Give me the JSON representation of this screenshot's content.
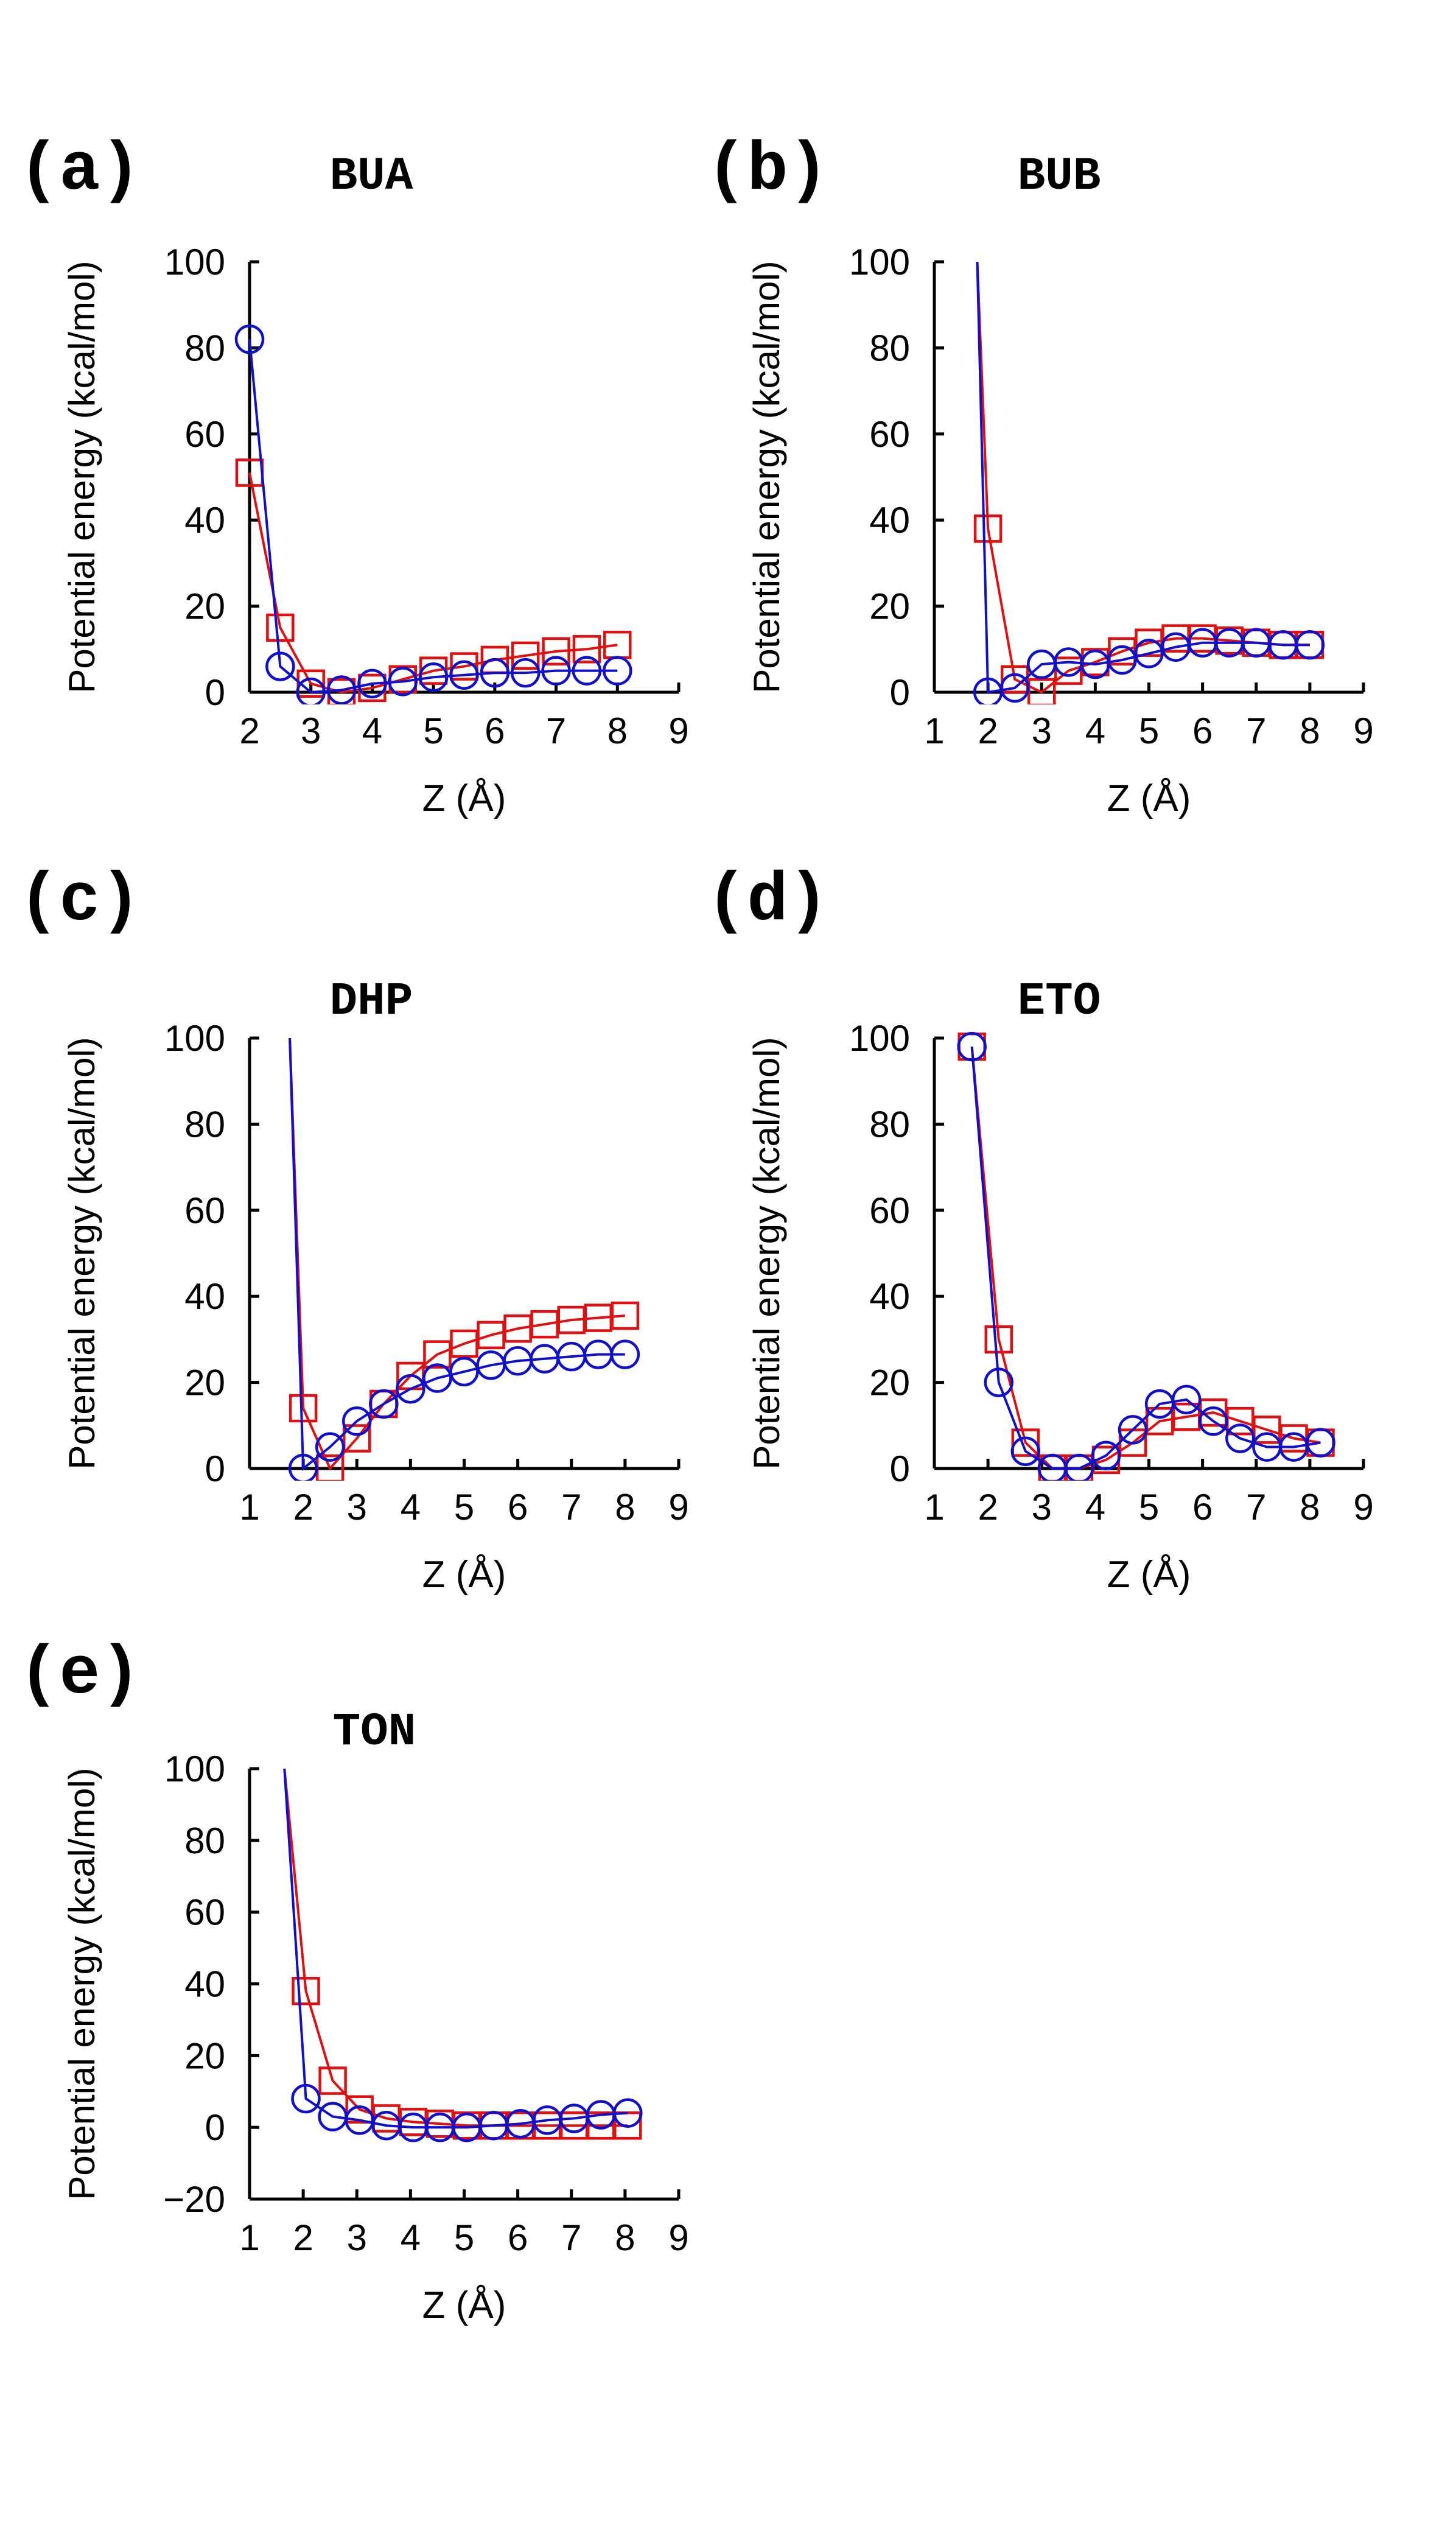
{
  "colors": {
    "series_a": "#e01010",
    "series_b": "#1010cc",
    "axis": "#000000"
  },
  "chart_data": [
    {
      "panel": "(a)",
      "title": "BUA",
      "type": "line",
      "xlabel": "Z (Å)",
      "ylabel": "Potential energy (kcal/mol)",
      "xlim": [
        2,
        9
      ],
      "ylim": [
        0,
        100
      ],
      "xticks": [
        2,
        3,
        4,
        5,
        6,
        7,
        8,
        9
      ],
      "yticks": [
        0,
        20,
        40,
        60,
        80,
        100
      ],
      "series": [
        {
          "name": "red squares",
          "marker": "square",
          "color": "#e01010",
          "x": [
            2.0,
            2.5,
            3.0,
            3.5,
            4.0,
            4.5,
            5.0,
            5.5,
            6.0,
            6.5,
            7.0,
            7.5,
            8.0
          ],
          "y": [
            51,
            15,
            2,
            0,
            1,
            3,
            5,
            6,
            7.5,
            8.5,
            9.5,
            10,
            11
          ]
        },
        {
          "name": "blue circles",
          "marker": "circle",
          "color": "#1010cc",
          "x": [
            2.0,
            2.5,
            3.0,
            3.5,
            4.0,
            4.5,
            5.0,
            5.5,
            6.0,
            6.5,
            7.0,
            7.5,
            8.0
          ],
          "y": [
            82,
            6,
            0,
            0.5,
            2,
            2.5,
            3.5,
            4,
            4.5,
            4.5,
            5,
            5,
            5
          ]
        }
      ]
    },
    {
      "panel": "(b)",
      "title": "BUB",
      "type": "line",
      "xlabel": "Z (Å)",
      "ylabel": "Potential energy (kcal/mol)",
      "xlim": [
        1,
        9
      ],
      "ylim": [
        0,
        100
      ],
      "xticks": [
        1,
        2,
        3,
        4,
        5,
        6,
        7,
        8,
        9
      ],
      "yticks": [
        0,
        20,
        40,
        60,
        80,
        100
      ],
      "series": [
        {
          "name": "red squares",
          "marker": "square",
          "color": "#e01010",
          "x": [
            1.8,
            2.0,
            2.5,
            3.0,
            3.5,
            4.0,
            4.5,
            5.0,
            5.5,
            6.0,
            6.5,
            7.0,
            7.5,
            8.0
          ],
          "y": [
            100,
            38,
            3,
            0,
            5,
            7,
            9.5,
            11.5,
            12.5,
            12.5,
            12,
            11.5,
            11,
            11
          ],
          "marker_from": 1
        },
        {
          "name": "blue circles",
          "marker": "circle",
          "color": "#1010cc",
          "x": [
            1.8,
            2.0,
            2.5,
            3.0,
            3.5,
            4.0,
            4.5,
            5.0,
            5.5,
            6.0,
            6.5,
            7.0,
            7.5,
            8.0
          ],
          "y": [
            100,
            0,
            1,
            6.5,
            7,
            6.5,
            7.5,
            9,
            10.5,
            11.5,
            11.5,
            11.5,
            11,
            11
          ],
          "marker_from": 1
        }
      ]
    },
    {
      "panel": "(c)",
      "title": "DHP",
      "type": "line",
      "xlabel": "Z (Å)",
      "ylabel": "Potential energy (kcal/mol)",
      "xlim": [
        1,
        9
      ],
      "ylim": [
        0,
        100
      ],
      "xticks": [
        1,
        2,
        3,
        4,
        5,
        6,
        7,
        8,
        9
      ],
      "yticks": [
        0,
        20,
        40,
        60,
        80,
        100
      ],
      "series": [
        {
          "name": "red squares",
          "marker": "square",
          "color": "#e01010",
          "x": [
            1.75,
            2.0,
            2.5,
            3.0,
            3.5,
            4.0,
            4.5,
            5.0,
            5.5,
            6.0,
            6.5,
            7.0,
            7.5,
            8.0
          ],
          "y": [
            100,
            14,
            0,
            7,
            15,
            21.5,
            26.5,
            29,
            31,
            32.5,
            33.5,
            34.5,
            35,
            35.5
          ],
          "marker_from": 1
        },
        {
          "name": "blue circles",
          "marker": "circle",
          "color": "#1010cc",
          "x": [
            1.75,
            2.0,
            2.5,
            3.0,
            3.5,
            4.0,
            4.5,
            5.0,
            5.5,
            6.0,
            6.5,
            7.0,
            7.5,
            8.0
          ],
          "y": [
            100,
            0,
            5,
            11,
            15,
            18.5,
            21,
            22.5,
            24,
            25,
            25.5,
            26,
            26.5,
            26.5
          ],
          "marker_from": 1
        }
      ]
    },
    {
      "panel": "(d)",
      "title": "ETO",
      "type": "line",
      "xlabel": "Z (Å)",
      "ylabel": "Potential energy (kcal/mol)",
      "xlim": [
        1,
        9
      ],
      "ylim": [
        0,
        100
      ],
      "xticks": [
        1,
        2,
        3,
        4,
        5,
        6,
        7,
        8,
        9
      ],
      "yticks": [
        0,
        20,
        40,
        60,
        80,
        100
      ],
      "series": [
        {
          "name": "red squares",
          "marker": "square",
          "color": "#e01010",
          "x": [
            1.7,
            2.2,
            2.7,
            3.2,
            3.7,
            4.2,
            4.7,
            5.2,
            5.7,
            6.2,
            6.7,
            7.2,
            7.7,
            8.2
          ],
          "y": [
            98,
            30,
            6,
            0,
            0,
            2,
            6,
            11,
            12,
            13,
            11,
            9,
            7,
            6
          ]
        },
        {
          "name": "blue circles",
          "marker": "circle",
          "color": "#1010cc",
          "x": [
            1.7,
            2.2,
            2.7,
            3.2,
            3.7,
            4.2,
            4.7,
            5.2,
            5.7,
            6.2,
            6.7,
            7.2,
            7.7,
            8.2
          ],
          "y": [
            98,
            20,
            4,
            0,
            0,
            3,
            9,
            15,
            16,
            11,
            7,
            5,
            5,
            6
          ]
        }
      ]
    },
    {
      "panel": "(e)",
      "title": "TON",
      "type": "line",
      "xlabel": "Z (Å)",
      "ylabel": "Potential energy (kcal/mol)",
      "xlim": [
        1,
        9
      ],
      "ylim": [
        -20,
        100
      ],
      "xticks": [
        1,
        2,
        3,
        4,
        5,
        6,
        7,
        8,
        9
      ],
      "yticks": [
        -20,
        0,
        20,
        40,
        60,
        80,
        100
      ],
      "series": [
        {
          "name": "red squares",
          "marker": "square",
          "color": "#e01010",
          "x": [
            1.65,
            2.05,
            2.55,
            3.05,
            3.55,
            4.05,
            4.55,
            5.05,
            5.55,
            6.05,
            6.55,
            7.05,
            7.55,
            8.05
          ],
          "y": [
            100,
            38,
            13,
            5,
            2.5,
            1.5,
            1,
            0.5,
            0.5,
            0.5,
            0.5,
            0.5,
            0.5,
            0.5
          ],
          "marker_from": 1
        },
        {
          "name": "blue circles",
          "marker": "circle",
          "color": "#1010cc",
          "x": [
            1.65,
            2.05,
            2.55,
            3.05,
            3.55,
            4.05,
            4.55,
            5.05,
            5.55,
            6.05,
            6.55,
            7.05,
            7.55,
            8.05
          ],
          "y": [
            100,
            8,
            3,
            2,
            0.5,
            0,
            0,
            0,
            0.5,
            1,
            2,
            2.5,
            3.5,
            4
          ],
          "marker_from": 1
        }
      ]
    }
  ]
}
